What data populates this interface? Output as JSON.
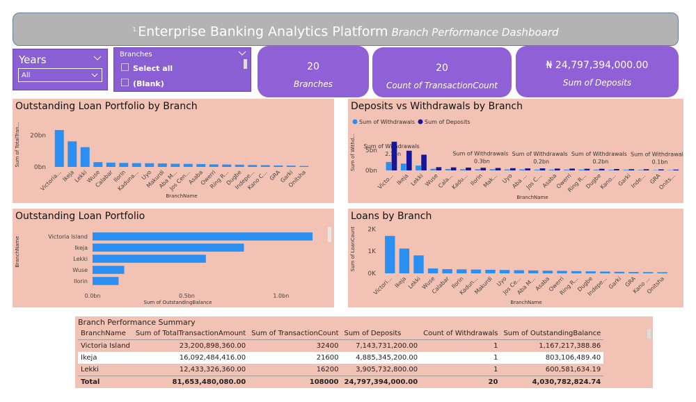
{
  "header": {
    "number": "1.",
    "title": "Enterprise Banking Analytics Platform",
    "subtitle": "Branch Performance Dashboard"
  },
  "slicers": [
    {
      "title": "Years",
      "selected": "All"
    },
    {
      "title": "Branches",
      "options": [
        "Select all",
        "(Blank)"
      ]
    }
  ],
  "cards": [
    {
      "value": "20",
      "label": "Branches"
    },
    {
      "value": "20",
      "label": "Count of TransactionCount"
    },
    {
      "value": "₦ 24,797,394,000.00",
      "label": "Sum of Deposits"
    }
  ],
  "chart_data": [
    {
      "type": "bar",
      "title": "Outstanding Loan Portfolio by Branch",
      "x_label": "BranchName",
      "y_label": "Sum of TotalTran...",
      "categories": [
        "Victoria...",
        "Ikeja",
        "Lekki",
        "Wuse",
        "Calabar",
        "Ilorin",
        "Kaduna...",
        "Uyo",
        "Makurdi",
        "Aba M...",
        "Jos Cen...",
        "Asaba",
        "Owerri",
        "Ring R...",
        "Dugbe",
        "Indepe...",
        "Kano C...",
        "GRA",
        "Garki",
        "Onitsha"
      ],
      "values": [
        23.2,
        16.09,
        12.43,
        3.0,
        2.7,
        2.5,
        2.4,
        2.3,
        2.2,
        2.0,
        1.9,
        1.8,
        1.6,
        1.5,
        1.4,
        1.2,
        1.1,
        0.9,
        0.8,
        0.6
      ],
      "color": "#2b8ff2",
      "ylim": [
        0,
        28
      ],
      "yticks": [
        {
          "value": 0,
          "label": "0bn"
        },
        {
          "value": 20,
          "label": "20bn"
        }
      ]
    },
    {
      "type": "grouped_bar",
      "title": "Deposits vs Withdrawals by Branch",
      "x_label": "BranchName",
      "y_label": "Sum of Withd...",
      "legend": "top-left",
      "categories": [
        "Victo...",
        "Ikeja",
        "Lekki",
        "Wuse",
        "Cala...",
        "Kadu...",
        "Ilorin",
        "Mak...",
        "Uyo",
        "Aba ...",
        "Jos C...",
        "Asaba",
        "Owerri",
        "Ring R...",
        "Dugbe",
        "Kano...",
        "Garki",
        "Inde...",
        "GRA",
        "Onits..."
      ],
      "series": [
        {
          "name": "Sum of Withdrawals",
          "color": "#2b8ff2",
          "values": [
            2.1,
            1.7,
            1.2,
            0.4,
            0.35,
            0.3,
            0.3,
            0.3,
            0.25,
            0.25,
            0.2,
            0.2,
            0.2,
            0.2,
            0.2,
            0.15,
            0.15,
            0.12,
            0.1,
            0.08
          ],
          "value_labels": [
            "2.1bn",
            null,
            null,
            null,
            null,
            null,
            "0.3bn",
            null,
            null,
            null,
            "0.2bn",
            null,
            null,
            null,
            "0.2bn",
            null,
            null,
            null,
            "0.1bn",
            null
          ]
        },
        {
          "name": "Sum of Deposits",
          "color": "#16169a",
          "values": [
            7.14,
            4.89,
            3.91,
            0.8,
            0.75,
            0.7,
            0.65,
            0.6,
            0.55,
            0.5,
            0.5,
            0.45,
            0.45,
            0.4,
            0.4,
            0.35,
            0.3,
            0.3,
            0.25,
            0.2
          ]
        }
      ],
      "ylim": [
        0,
        9
      ],
      "yticks": [
        {
          "value": 0,
          "label": "0bn"
        },
        {
          "value": 5,
          "label": "5bn"
        }
      ]
    },
    {
      "type": "hbar",
      "title": "Outstanding Loan Portfolio",
      "x_label": "Sum of OutstandingBalance",
      "y_label": "BranchName",
      "categories": [
        "Victoria Island",
        "Ikeja",
        "Lekki",
        "Wuse",
        "Ilorin"
      ],
      "values": [
        1.167,
        0.803,
        0.601,
        0.168,
        0.138
      ],
      "color": "#2b8ff2",
      "xlim": [
        0,
        1.2
      ],
      "xticks": [
        {
          "value": 0,
          "label": "0.0bn"
        },
        {
          "value": 0.5,
          "label": "0.5bn"
        },
        {
          "value": 1,
          "label": "1.0bn"
        }
      ]
    },
    {
      "type": "bar",
      "title": "Loans by Branch",
      "x_label": "BranchName",
      "y_label": "Sum of LoanCount",
      "categories": [
        "Victori...",
        "Ikeja",
        "Lekki",
        "Wuse",
        "Calabar",
        "Ilorin",
        "Kadun...",
        "Makurdi",
        "Uyo",
        "Jos Ce...",
        "Aba M...",
        "Asaba",
        "Owerri",
        "Ring R...",
        "Dugbe",
        "Indepe...",
        "Garki",
        "GRA",
        "Kano ...",
        "Onitsha"
      ],
      "values": [
        1690,
        1120,
        810,
        220,
        190,
        180,
        170,
        160,
        150,
        140,
        130,
        120,
        110,
        100,
        90,
        80,
        70,
        60,
        55,
        50
      ],
      "color": "#2b8ff2",
      "ylim": [
        0,
        2200
      ],
      "yticks": [
        {
          "value": 0,
          "label": "0K"
        },
        {
          "value": 1000,
          "label": "1K"
        },
        {
          "value": 2000,
          "label": "2K"
        }
      ]
    }
  ],
  "table": {
    "title": "Branch Performance Summary",
    "columns": [
      "BranchName",
      "Sum of TotalTransactionAmount",
      "Sum of TransactionCount",
      "Sum of Deposits",
      "Count of Withdrawals",
      "Sum of OutstandingBalance"
    ],
    "rows": [
      [
        "Victoria Island",
        "23,200,898,360.00",
        "32400",
        "7,143,731,200.00",
        "1",
        "1,167,217,388.86"
      ],
      [
        "Ikeja",
        "16,092,484,416.00",
        "21600",
        "4,885,345,200.00",
        "1",
        "803,106,489.40"
      ],
      [
        "Lekki",
        "12,433,326,360.00",
        "16200",
        "3,905,732,800.00",
        "1",
        "600,581,634.19"
      ]
    ],
    "total": [
      "Total",
      "81,653,480,080.00",
      "108000",
      "24,797,394,000.00",
      "20",
      "4,030,782,824.74"
    ]
  }
}
